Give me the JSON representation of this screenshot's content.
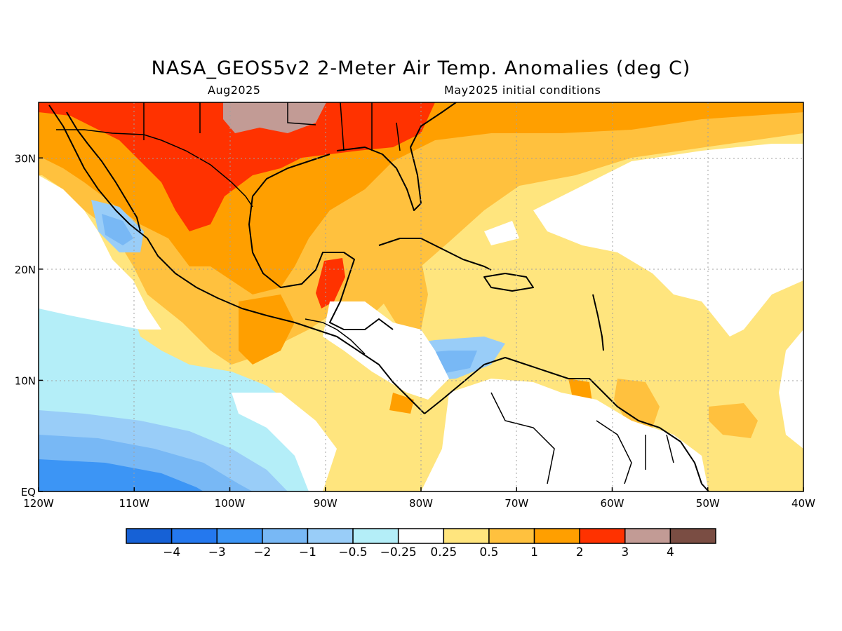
{
  "title": "NASA_GEOS5v2 2-Meter Air Temp. Anomalies (deg C)",
  "subtitle_left": "Aug2025",
  "subtitle_right": "May2025 initial conditions",
  "axes": {
    "lon_labels": [
      "120W",
      "110W",
      "100W",
      "90W",
      "80W",
      "70W",
      "60W",
      "50W",
      "40W"
    ],
    "lat_labels": [
      "EQ",
      "10N",
      "20N",
      "30N"
    ],
    "lon_range": [
      -120,
      -40
    ],
    "lat_range": [
      0,
      35
    ],
    "grid": "dotted"
  },
  "colorbar": {
    "colors": [
      "#1661d6",
      "#2478ee",
      "#3c95f5",
      "#78b8f5",
      "#99cdf8",
      "#b4eef8",
      "#ffffff",
      "#ffe57e",
      "#ffc13e",
      "#ff9f00",
      "#ff3200",
      "#c29b95",
      "#7a4d43"
    ],
    "labels": [
      "-4",
      "-3",
      "-2",
      "-1",
      "-0.5",
      "-0.25",
      "0.25",
      "0.5",
      "1",
      "2",
      "3",
      "4"
    ]
  },
  "colors": {
    "ocean_default": "#ffe57e",
    "land_outline": "#000000"
  }
}
